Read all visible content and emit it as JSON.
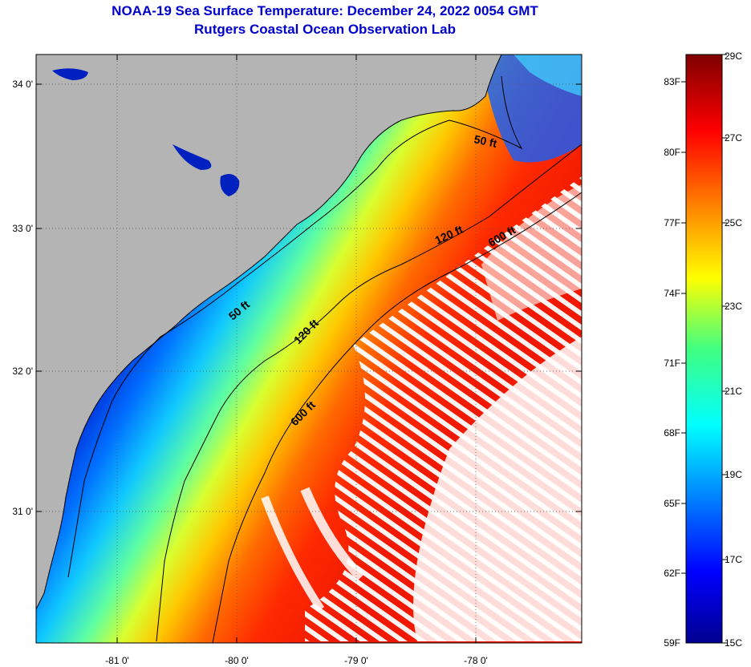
{
  "title": {
    "line1": "NOAA-19 Sea Surface Temperature:  December 24, 2022 0054 GMT",
    "line2": "Rutgers Coastal Ocean Observation Lab"
  },
  "axes": {
    "lon_labels": [
      "-81 0'",
      "-80 0'",
      "-79 0'",
      "-78 0'"
    ],
    "lat_labels": [
      "34 0'",
      "33 0'",
      "32 0'",
      "31 0'"
    ]
  },
  "contours": {
    "c50a": "50 ft",
    "c50b": "50 ft",
    "c120a": "120 ft",
    "c120b": "120 ft",
    "c600a": "600 ft",
    "c600b": "600 ft"
  },
  "colorbar": {
    "fahrenheit": [
      "83F",
      "80F",
      "77F",
      "74F",
      "71F",
      "68F",
      "65F",
      "62F",
      "59F"
    ],
    "celsius": [
      "29C",
      "27C",
      "25C",
      "23C",
      "21C",
      "19C",
      "17C",
      "15C"
    ]
  },
  "colors": {
    "land": "#b4b4b4",
    "cold": "#00008f",
    "warm": "#7f0000",
    "title": "#0000cc"
  }
}
